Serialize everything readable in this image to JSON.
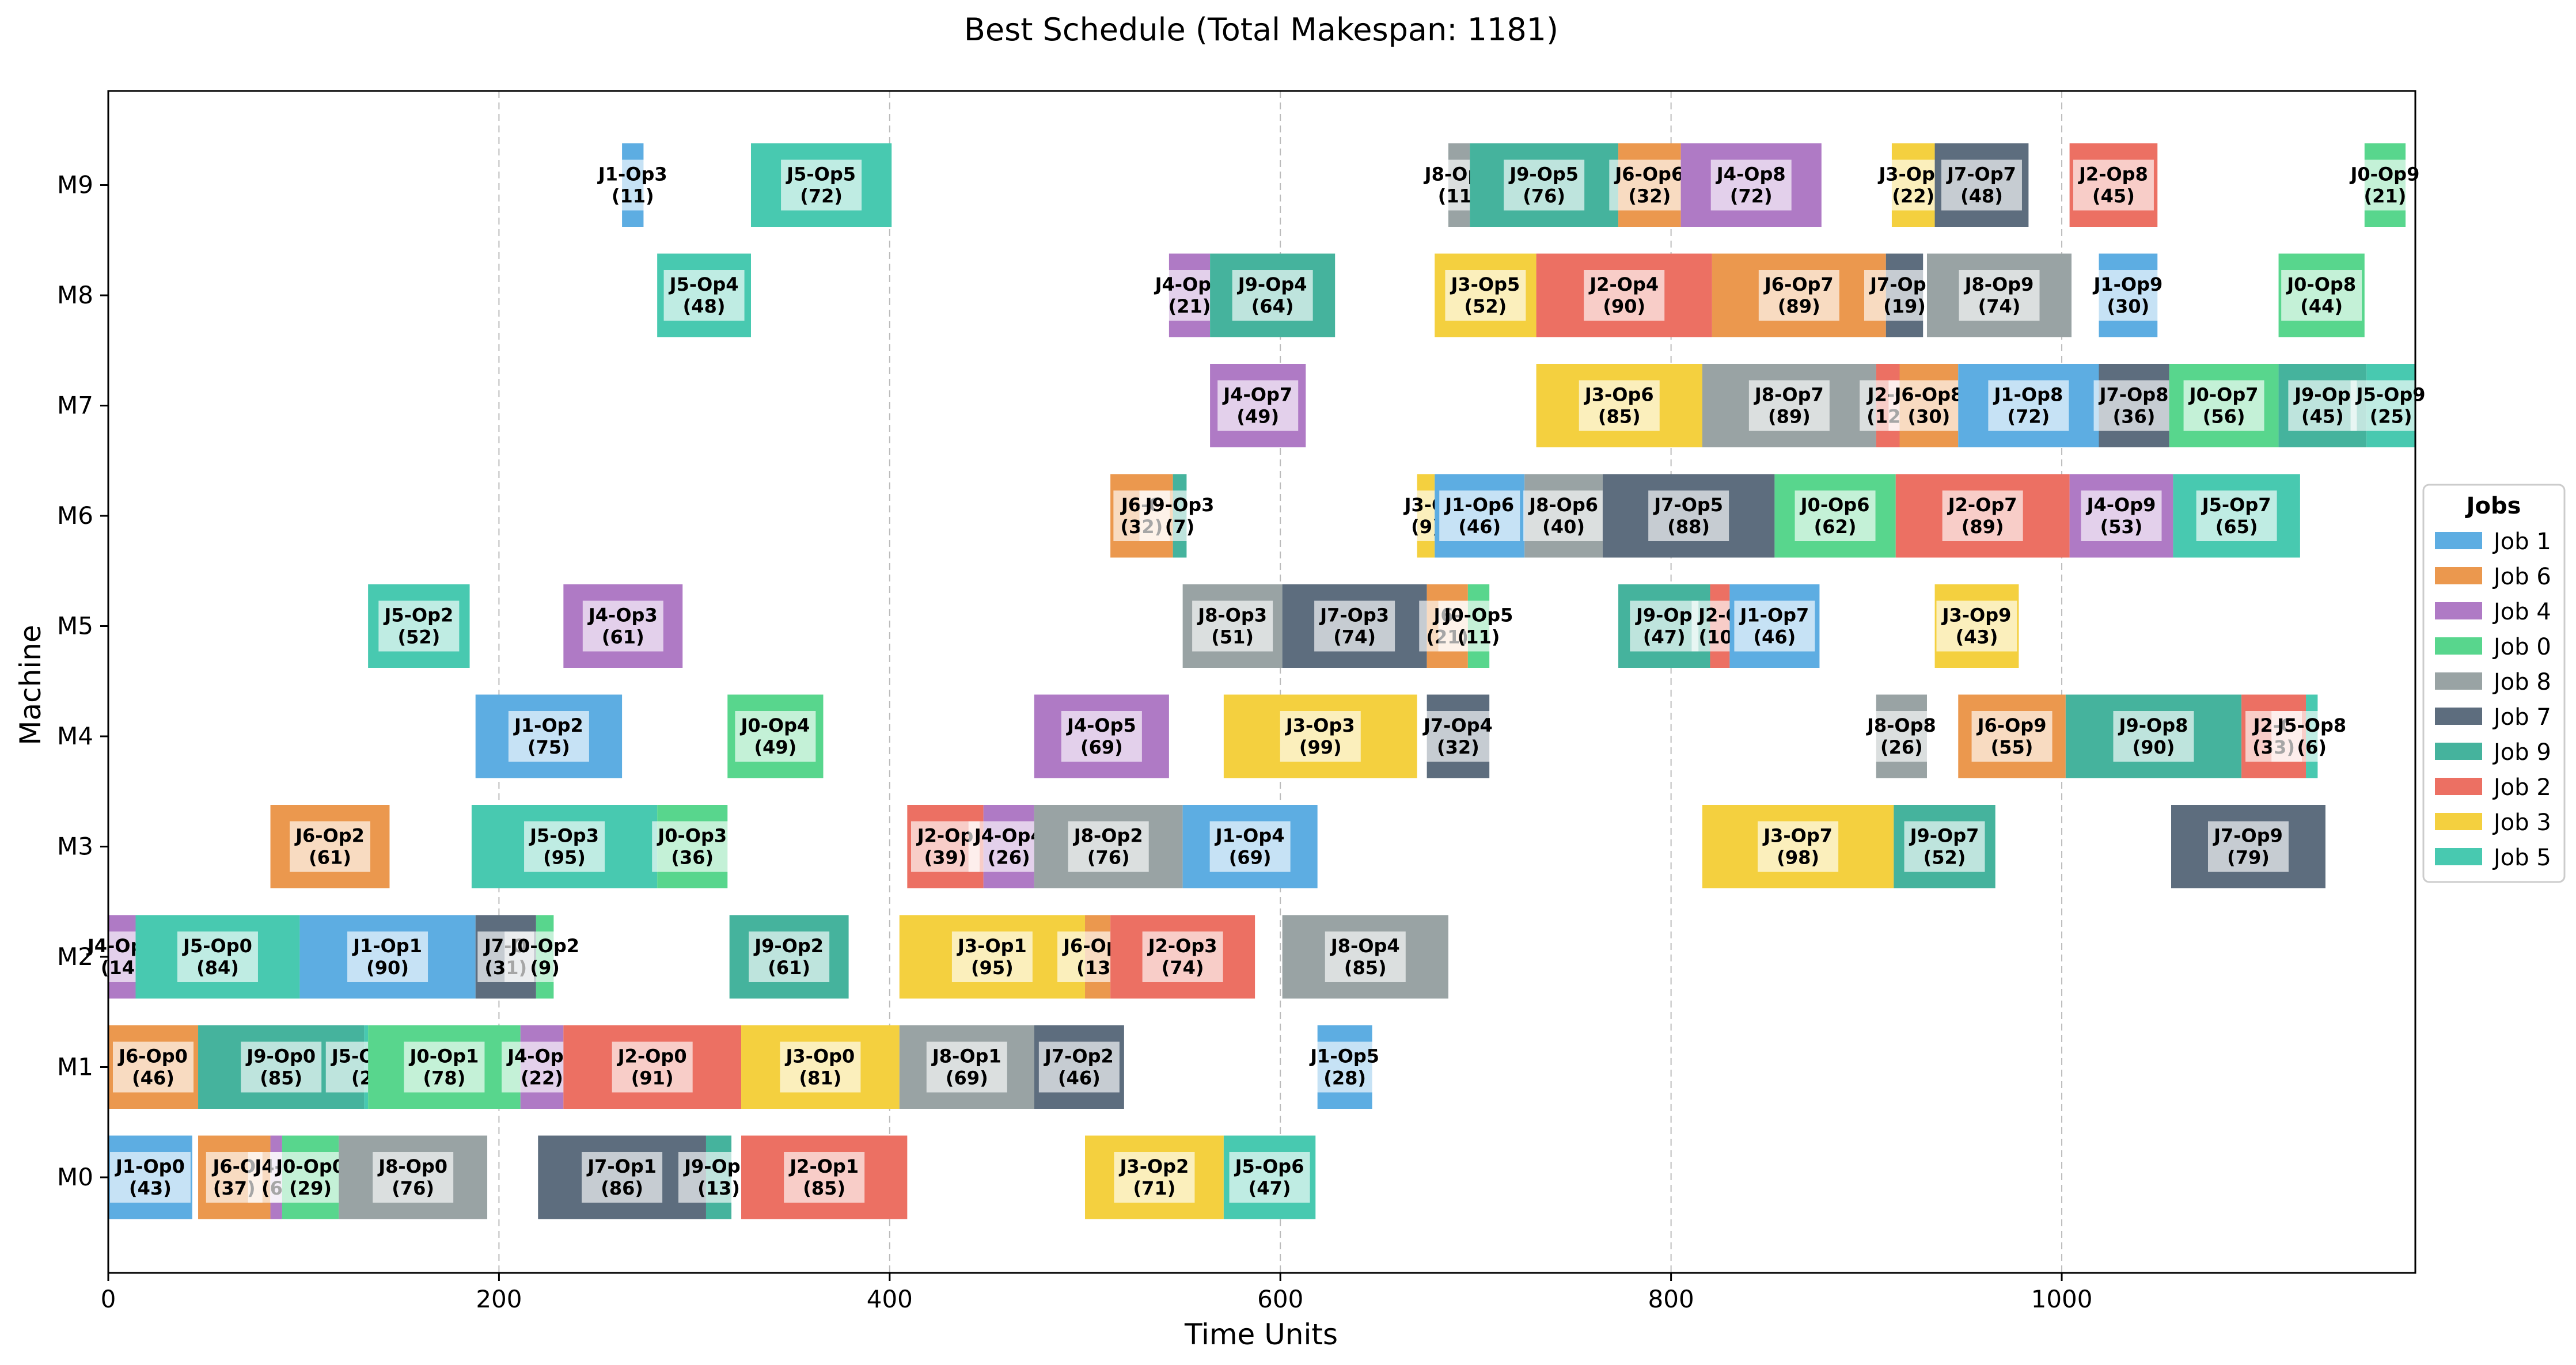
{
  "chart_data": {
    "type": "gantt",
    "title": "Best Schedule (Total Makespan: 1181)",
    "xlabel": "Time Units",
    "ylabel": "Machine",
    "xlim": [
      0,
      1181
    ],
    "xticks": [
      0,
      200,
      400,
      600,
      800,
      1000
    ],
    "grid": "vertical dashed",
    "machines": [
      "M0",
      "M1",
      "M2",
      "M3",
      "M4",
      "M5",
      "M6",
      "M7",
      "M8",
      "M9"
    ],
    "legend": {
      "title": "Jobs",
      "placement": "right",
      "entries": [
        {
          "label": "Job 1",
          "color": "#5DADE2"
        },
        {
          "label": "Job 6",
          "color": "#EB984E"
        },
        {
          "label": "Job 4",
          "color": "#AF7AC5"
        },
        {
          "label": "Job 0",
          "color": "#58D68D"
        },
        {
          "label": "Job 8",
          "color": "#99A3A4"
        },
        {
          "label": "Job 7",
          "color": "#5D6D7E"
        },
        {
          "label": "Job 9",
          "color": "#45B39D"
        },
        {
          "label": "Job 2",
          "color": "#EC7063"
        },
        {
          "label": "Job 3",
          "color": "#F4D03F"
        },
        {
          "label": "Job 5",
          "color": "#48C9B0"
        }
      ]
    },
    "tasks": [
      {
        "machine": 0,
        "job": "Job 1",
        "label": "J1-Op0\n(43)",
        "start": 0,
        "duration": 43
      },
      {
        "machine": 0,
        "job": "Job 6",
        "label": "J6-O\n(37)",
        "start": 46,
        "duration": 37
      },
      {
        "machine": 0,
        "job": "Job 4",
        "label": "J4-O\n(6)",
        "start": 83,
        "duration": 6
      },
      {
        "machine": 0,
        "job": "Job 0",
        "label": "J0-Op0\n(29)",
        "start": 89,
        "duration": 29
      },
      {
        "machine": 0,
        "job": "Job 8",
        "label": "J8-Op0\n(76)",
        "start": 118,
        "duration": 76
      },
      {
        "machine": 0,
        "job": "Job 7",
        "label": "J7-Op1\n(86)",
        "start": 220,
        "duration": 86
      },
      {
        "machine": 0,
        "job": "Job 9",
        "label": "J9-Op1\n(13)",
        "start": 306,
        "duration": 13
      },
      {
        "machine": 0,
        "job": "Job 2",
        "label": "J2-Op1\n(85)",
        "start": 324,
        "duration": 85
      },
      {
        "machine": 0,
        "job": "Job 3",
        "label": "J3-Op2\n(71)",
        "start": 500,
        "duration": 71
      },
      {
        "machine": 0,
        "job": "Job 5",
        "label": "J5-Op6\n(47)",
        "start": 571,
        "duration": 47
      },
      {
        "machine": 1,
        "job": "Job 6",
        "label": "J6-Op0\n(46)",
        "start": 0,
        "duration": 46
      },
      {
        "machine": 1,
        "job": "Job 9",
        "label": "J9-Op0\n(85)",
        "start": 46,
        "duration": 85
      },
      {
        "machine": 1,
        "job": "Job 5",
        "label": "J5-Op1\n(2)",
        "start": 131,
        "duration": 2
      },
      {
        "machine": 1,
        "job": "Job 0",
        "label": "J0-Op1\n(78)",
        "start": 133,
        "duration": 78
      },
      {
        "machine": 1,
        "job": "Job 4",
        "label": "J4-Op2\n(22)",
        "start": 211,
        "duration": 22
      },
      {
        "machine": 1,
        "job": "Job 2",
        "label": "J2-Op0\n(91)",
        "start": 233,
        "duration": 91
      },
      {
        "machine": 1,
        "job": "Job 3",
        "label": "J3-Op0\n(81)",
        "start": 324,
        "duration": 81
      },
      {
        "machine": 1,
        "job": "Job 8",
        "label": "J8-Op1\n(69)",
        "start": 405,
        "duration": 69
      },
      {
        "machine": 1,
        "job": "Job 7",
        "label": "J7-Op2\n(46)",
        "start": 474,
        "duration": 46
      },
      {
        "machine": 1,
        "job": "Job 1",
        "label": "J1-Op5\n(28)",
        "start": 619,
        "duration": 28
      },
      {
        "machine": 2,
        "job": "Job 4",
        "label": "J4-Op0\n(14)",
        "start": 0,
        "duration": 14
      },
      {
        "machine": 2,
        "job": "Job 5",
        "label": "J5-Op0\n(84)",
        "start": 14,
        "duration": 84
      },
      {
        "machine": 2,
        "job": "Job 1",
        "label": "J1-Op1\n(90)",
        "start": 98,
        "duration": 90
      },
      {
        "machine": 2,
        "job": "Job 7",
        "label": "J7-O\n(31)",
        "start": 188,
        "duration": 31
      },
      {
        "machine": 2,
        "job": "Job 0",
        "label": "J0-Op2\n(9)",
        "start": 219,
        "duration": 9
      },
      {
        "machine": 2,
        "job": "Job 9",
        "label": "J9-Op2\n(61)",
        "start": 318,
        "duration": 61
      },
      {
        "machine": 2,
        "job": "Job 3",
        "label": "J3-Op1\n(95)",
        "start": 405,
        "duration": 95
      },
      {
        "machine": 2,
        "job": "Job 6",
        "label": "J6-Op3\n(13)",
        "start": 500,
        "duration": 13
      },
      {
        "machine": 2,
        "job": "Job 2",
        "label": "J2-Op3\n(74)",
        "start": 513,
        "duration": 74
      },
      {
        "machine": 2,
        "job": "Job 8",
        "label": "J8-Op4\n(85)",
        "start": 601,
        "duration": 85
      },
      {
        "machine": 3,
        "job": "Job 6",
        "label": "J6-Op2\n(61)",
        "start": 83,
        "duration": 61
      },
      {
        "machine": 3,
        "job": "Job 5",
        "label": "J5-Op3\n(95)",
        "start": 186,
        "duration": 95
      },
      {
        "machine": 3,
        "job": "Job 0",
        "label": "J0-Op3\n(36)",
        "start": 281,
        "duration": 36
      },
      {
        "machine": 3,
        "job": "Job 2",
        "label": "J2-Op\n(39)",
        "start": 409,
        "duration": 39
      },
      {
        "machine": 3,
        "job": "Job 4",
        "label": "J4-Op4\n(26)",
        "start": 448,
        "duration": 26
      },
      {
        "machine": 3,
        "job": "Job 8",
        "label": "J8-Op2\n(76)",
        "start": 474,
        "duration": 76
      },
      {
        "machine": 3,
        "job": "Job 1",
        "label": "J1-Op4\n(69)",
        "start": 550,
        "duration": 69
      },
      {
        "machine": 3,
        "job": "Job 3",
        "label": "J3-Op7\n(98)",
        "start": 816,
        "duration": 98
      },
      {
        "machine": 3,
        "job": "Job 9",
        "label": "J9-Op7\n(52)",
        "start": 914,
        "duration": 52
      },
      {
        "machine": 3,
        "job": "Job 7",
        "label": "J7-Op9\n(79)",
        "start": 1056,
        "duration": 79
      },
      {
        "machine": 4,
        "job": "Job 1",
        "label": "J1-Op2\n(75)",
        "start": 188,
        "duration": 75
      },
      {
        "machine": 4,
        "job": "Job 0",
        "label": "J0-Op4\n(49)",
        "start": 317,
        "duration": 49
      },
      {
        "machine": 4,
        "job": "Job 4",
        "label": "J4-Op5\n(69)",
        "start": 474,
        "duration": 69
      },
      {
        "machine": 4,
        "job": "Job 3",
        "label": "J3-Op3\n(99)",
        "start": 571,
        "duration": 99
      },
      {
        "machine": 4,
        "job": "Job 7",
        "label": "J7-Op4\n(32)",
        "start": 675,
        "duration": 32
      },
      {
        "machine": 4,
        "job": "Job 8",
        "label": "J8-Op8\n(26)",
        "start": 905,
        "duration": 26
      },
      {
        "machine": 4,
        "job": "Job 6",
        "label": "J6-Op9\n(55)",
        "start": 947,
        "duration": 55
      },
      {
        "machine": 4,
        "job": "Job 9",
        "label": "J9-Op8\n(90)",
        "start": 1002,
        "duration": 90
      },
      {
        "machine": 4,
        "job": "Job 2",
        "label": "J2-C\n(33)",
        "start": 1092,
        "duration": 33
      },
      {
        "machine": 4,
        "job": "Job 5",
        "label": "J5-Op8\n(6)",
        "start": 1125,
        "duration": 6
      },
      {
        "machine": 5,
        "job": "Job 5",
        "label": "J5-Op2\n(52)",
        "start": 133,
        "duration": 52
      },
      {
        "machine": 5,
        "job": "Job 4",
        "label": "J4-Op3\n(61)",
        "start": 233,
        "duration": 61
      },
      {
        "machine": 5,
        "job": "Job 8",
        "label": "J8-Op3\n(51)",
        "start": 550,
        "duration": 51
      },
      {
        "machine": 5,
        "job": "Job 7",
        "label": "J7-Op3\n(74)",
        "start": 601,
        "duration": 74
      },
      {
        "machine": 5,
        "job": "Job 6",
        "label": "J6-\n(21)",
        "start": 675,
        "duration": 21
      },
      {
        "machine": 5,
        "job": "Job 0",
        "label": "J0-Op5\n(11)",
        "start": 696,
        "duration": 11
      },
      {
        "machine": 5,
        "job": "Job 9",
        "label": "J9-Op\n(47)",
        "start": 773,
        "duration": 47
      },
      {
        "machine": 5,
        "job": "Job 2",
        "label": "J2-O\n(10)",
        "start": 820,
        "duration": 10
      },
      {
        "machine": 5,
        "job": "Job 1",
        "label": "J1-Op7\n(46)",
        "start": 830,
        "duration": 46
      },
      {
        "machine": 5,
        "job": "Job 3",
        "label": "J3-Op9\n(43)",
        "start": 935,
        "duration": 43
      },
      {
        "machine": 6,
        "job": "Job 6",
        "label": "J6-C\n(32)",
        "start": 513,
        "duration": 32
      },
      {
        "machine": 6,
        "job": "Job 9",
        "label": "J9-Op3\n(7)",
        "start": 545,
        "duration": 7
      },
      {
        "machine": 6,
        "job": "Job 3",
        "label": "J3-O\n(9)",
        "start": 670,
        "duration": 9
      },
      {
        "machine": 6,
        "job": "Job 1",
        "label": "J1-Op6\n(46)",
        "start": 679,
        "duration": 46
      },
      {
        "machine": 6,
        "job": "Job 8",
        "label": "J8-Op6\n(40)",
        "start": 725,
        "duration": 40
      },
      {
        "machine": 6,
        "job": "Job 7",
        "label": "J7-Op5\n(88)",
        "start": 765,
        "duration": 88
      },
      {
        "machine": 6,
        "job": "Job 0",
        "label": "J0-Op6\n(62)",
        "start": 853,
        "duration": 62
      },
      {
        "machine": 6,
        "job": "Job 2",
        "label": "J2-Op7\n(89)",
        "start": 915,
        "duration": 89
      },
      {
        "machine": 6,
        "job": "Job 4",
        "label": "J4-Op9\n(53)",
        "start": 1004,
        "duration": 53
      },
      {
        "machine": 6,
        "job": "Job 5",
        "label": "J5-Op7\n(65)",
        "start": 1057,
        "duration": 65
      },
      {
        "machine": 7,
        "job": "Job 4",
        "label": "J4-Op7\n(49)",
        "start": 564,
        "duration": 49
      },
      {
        "machine": 7,
        "job": "Job 3",
        "label": "J3-Op6\n(85)",
        "start": 731,
        "duration": 85
      },
      {
        "machine": 7,
        "job": "Job 8",
        "label": "J8-Op7\n(89)",
        "start": 816,
        "duration": 89
      },
      {
        "machine": 7,
        "job": "Job 2",
        "label": "J2-C\n(12)",
        "start": 905,
        "duration": 12
      },
      {
        "machine": 7,
        "job": "Job 6",
        "label": "J6-Op8\n(30)",
        "start": 917,
        "duration": 30
      },
      {
        "machine": 7,
        "job": "Job 1",
        "label": "J1-Op8\n(72)",
        "start": 947,
        "duration": 72
      },
      {
        "machine": 7,
        "job": "Job 7",
        "label": "J7-Op8\n(36)",
        "start": 1019,
        "duration": 36
      },
      {
        "machine": 7,
        "job": "Job 0",
        "label": "J0-Op7\n(56)",
        "start": 1055,
        "duration": 56
      },
      {
        "machine": 7,
        "job": "Job 9",
        "label": "J9-Op\n(45)",
        "start": 1111,
        "duration": 45
      },
      {
        "machine": 7,
        "job": "Job 5",
        "label": "J5-Op9\n(25)",
        "start": 1156,
        "duration": 25
      },
      {
        "machine": 8,
        "job": "Job 5",
        "label": "J5-Op4\n(48)",
        "start": 281,
        "duration": 48
      },
      {
        "machine": 8,
        "job": "Job 4",
        "label": "J4-Op6\n(21)",
        "start": 543,
        "duration": 21
      },
      {
        "machine": 8,
        "job": "Job 9",
        "label": "J9-Op4\n(64)",
        "start": 564,
        "duration": 64
      },
      {
        "machine": 8,
        "job": "Job 3",
        "label": "J3-Op5\n(52)",
        "start": 679,
        "duration": 52
      },
      {
        "machine": 8,
        "job": "Job 2",
        "label": "J2-Op4\n(90)",
        "start": 731,
        "duration": 90
      },
      {
        "machine": 8,
        "job": "Job 6",
        "label": "J6-Op7\n(89)",
        "start": 821,
        "duration": 89
      },
      {
        "machine": 8,
        "job": "Job 7",
        "label": "J7-Op6\n(19)",
        "start": 910,
        "duration": 19
      },
      {
        "machine": 8,
        "job": "Job 8",
        "label": "J8-Op9\n(74)",
        "start": 931,
        "duration": 74
      },
      {
        "machine": 8,
        "job": "Job 1",
        "label": "J1-Op9\n(30)",
        "start": 1019,
        "duration": 30
      },
      {
        "machine": 8,
        "job": "Job 0",
        "label": "J0-Op8\n(44)",
        "start": 1111,
        "duration": 44
      },
      {
        "machine": 9,
        "job": "Job 1",
        "label": "J1-Op3\n(11)",
        "start": 263,
        "duration": 11
      },
      {
        "machine": 9,
        "job": "Job 5",
        "label": "J5-Op5\n(72)",
        "start": 329,
        "duration": 72
      },
      {
        "machine": 9,
        "job": "Job 8",
        "label": "J8-Op5\n(11)",
        "start": 686,
        "duration": 11
      },
      {
        "machine": 9,
        "job": "Job 9",
        "label": "J9-Op5\n(76)",
        "start": 697,
        "duration": 76
      },
      {
        "machine": 9,
        "job": "Job 6",
        "label": "J6-Op6\n(32)",
        "start": 773,
        "duration": 32
      },
      {
        "machine": 9,
        "job": "Job 4",
        "label": "J4-Op8\n(72)",
        "start": 805,
        "duration": 72
      },
      {
        "machine": 9,
        "job": "Job 3",
        "label": "J3-Op8\n(22)",
        "start": 913,
        "duration": 22
      },
      {
        "machine": 9,
        "job": "Job 7",
        "label": "J7-Op7\n(48)",
        "start": 935,
        "duration": 48
      },
      {
        "machine": 9,
        "job": "Job 2",
        "label": "J2-Op8\n(45)",
        "start": 1004,
        "duration": 45
      },
      {
        "machine": 9,
        "job": "Job 0",
        "label": "J0-Op9\n(21)",
        "start": 1155,
        "duration": 21
      }
    ]
  }
}
